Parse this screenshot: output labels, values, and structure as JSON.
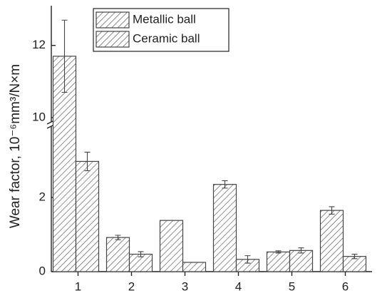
{
  "chart_data": {
    "type": "bar",
    "y_label": "Wear factor, 10⁻⁶mm³/N×m",
    "categories": [
      "1",
      "2",
      "3",
      "4",
      "5",
      "6"
    ],
    "series": [
      {
        "name": "Metallic ball",
        "color": "#444444",
        "values": [
          11.7,
          0.92,
          1.38,
          2.35,
          0.53,
          1.65
        ],
        "errors": [
          1.0,
          0.06,
          0,
          0.1,
          0.03,
          0.1
        ]
      },
      {
        "name": "Ceramic ball",
        "color": "#444444",
        "values": [
          2.97,
          0.47,
          0.25,
          0.33,
          0.57,
          0.41
        ],
        "errors": [
          0.25,
          0.07,
          0,
          0.1,
          0.07,
          0.06
        ]
      }
    ],
    "ylim": [
      0,
      13.1
    ],
    "ybreak": [
      3.9,
      9.9
    ],
    "yticks": [
      0,
      2,
      10,
      12
    ]
  }
}
